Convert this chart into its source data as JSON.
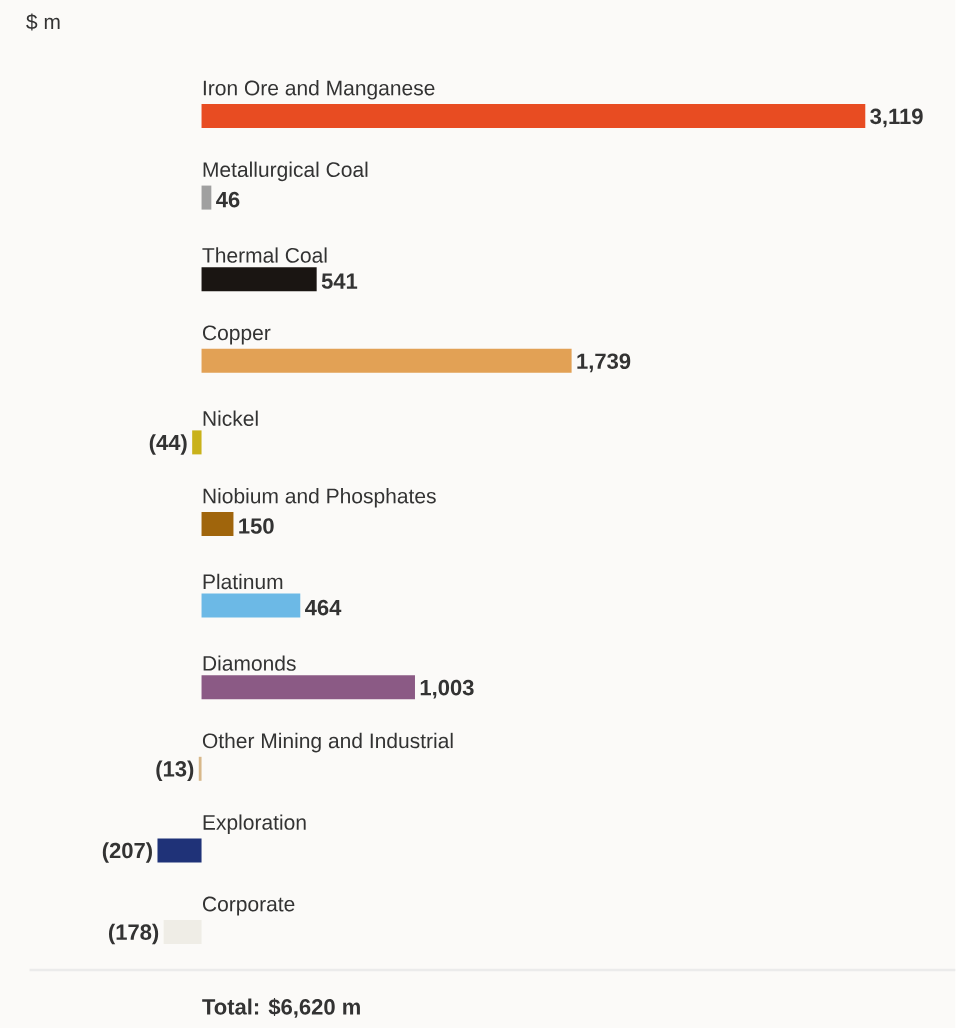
{
  "chart_data": {
    "type": "bar",
    "orientation": "horizontal",
    "subtitle": "$ m",
    "categories": [
      "Iron Ore and Manganese",
      "Metallurgical Coal",
      "Thermal Coal",
      "Copper",
      "Nickel",
      "Niobium and Phosphates",
      "Platinum",
      "Diamonds",
      "Other Mining and Industrial",
      "Exploration",
      "Corporate"
    ],
    "values": [
      3119,
      46,
      541,
      1739,
      -44,
      150,
      464,
      1003,
      -13,
      -207,
      -178
    ],
    "value_labels": [
      "3,119",
      "46",
      "541",
      "1,739",
      "(44)",
      "150",
      "464",
      "1,003",
      "(13)",
      "(207)",
      "(178)"
    ],
    "colors": [
      "#e84c22",
      "#a0a0a0",
      "#1a1512",
      "#e2a155",
      "#c9b21a",
      "#a0650c",
      "#6cb9e6",
      "#8b5a85",
      "#d8b88a",
      "#1f3278",
      "#efede6"
    ],
    "annotations": [
      "Total: $6,620 m"
    ]
  }
}
